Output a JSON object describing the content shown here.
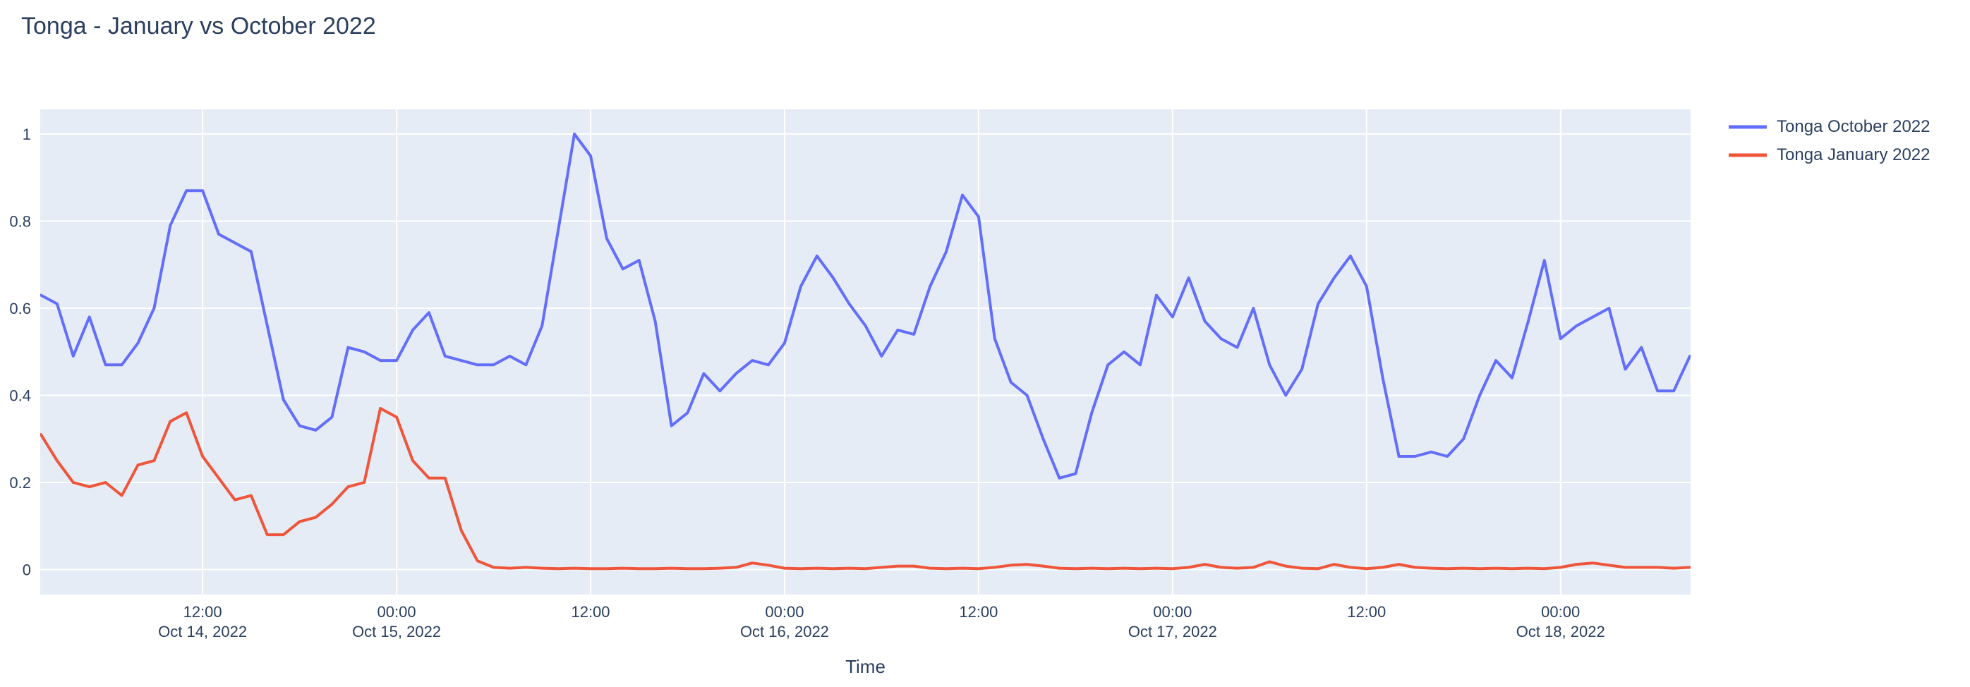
{
  "chart": {
    "title": "Tonga - January vs October 2022"
  },
  "chart_data": {
    "type": "line",
    "title": "Tonga - January vs October 2022",
    "xlabel": "Time",
    "ylabel": "",
    "x_start": "2022-10-14 02:00",
    "x_step_hours": 1,
    "x_end": "2022-10-18 08:00",
    "ylim": [
      -0.058,
      1.057
    ],
    "grid": true,
    "legend_position": "top-right",
    "plot_bg_color": "#E5ECF6",
    "grid_color": "#ffffff",
    "text_color": "#2a3f5f",
    "y_ticks": [
      "0",
      "0.2",
      "0.4",
      "0.6",
      "0.8",
      "1"
    ],
    "y_tick_values": [
      0,
      0.2,
      0.4,
      0.6,
      0.8,
      1
    ],
    "x_ticks": [
      {
        "hour_offset": 10,
        "time": "12:00",
        "date": "Oct 14, 2022"
      },
      {
        "hour_offset": 22,
        "time": "00:00",
        "date": "Oct 15, 2022"
      },
      {
        "hour_offset": 34,
        "time": "12:00",
        "date": ""
      },
      {
        "hour_offset": 46,
        "time": "00:00",
        "date": "Oct 16, 2022"
      },
      {
        "hour_offset": 58,
        "time": "12:00",
        "date": ""
      },
      {
        "hour_offset": 70,
        "time": "00:00",
        "date": "Oct 17, 2022"
      },
      {
        "hour_offset": 82,
        "time": "12:00",
        "date": ""
      },
      {
        "hour_offset": 94,
        "time": "00:00",
        "date": "Oct 18, 2022"
      }
    ],
    "series": [
      {
        "name": "Tonga October 2022",
        "color": "#636EFA",
        "values": [
          0.63,
          0.61,
          0.49,
          0.58,
          0.47,
          0.47,
          0.52,
          0.6,
          0.79,
          0.87,
          0.87,
          0.77,
          0.75,
          0.73,
          0.56,
          0.39,
          0.33,
          0.32,
          0.35,
          0.51,
          0.5,
          0.48,
          0.48,
          0.55,
          0.59,
          0.49,
          0.48,
          0.47,
          0.47,
          0.49,
          0.47,
          0.56,
          0.78,
          1.0,
          0.95,
          0.76,
          0.69,
          0.71,
          0.57,
          0.33,
          0.36,
          0.45,
          0.41,
          0.45,
          0.48,
          0.47,
          0.52,
          0.65,
          0.72,
          0.67,
          0.61,
          0.56,
          0.49,
          0.55,
          0.54,
          0.65,
          0.73,
          0.86,
          0.81,
          0.53,
          0.43,
          0.4,
          0.3,
          0.21,
          0.22,
          0.36,
          0.47,
          0.5,
          0.47,
          0.63,
          0.58,
          0.67,
          0.57,
          0.53,
          0.51,
          0.6,
          0.47,
          0.4,
          0.46,
          0.61,
          0.67,
          0.72,
          0.65,
          0.44,
          0.26,
          0.26,
          0.27,
          0.26,
          0.3,
          0.4,
          0.48,
          0.44,
          0.57,
          0.71,
          0.53,
          0.56,
          0.58,
          0.6,
          0.46,
          0.51,
          0.41,
          0.41,
          0.49
        ]
      },
      {
        "name": "Tonga January 2022",
        "color": "#EF553B",
        "values": [
          0.31,
          0.25,
          0.2,
          0.19,
          0.2,
          0.17,
          0.24,
          0.25,
          0.34,
          0.36,
          0.26,
          0.21,
          0.16,
          0.17,
          0.08,
          0.08,
          0.11,
          0.12,
          0.15,
          0.19,
          0.2,
          0.37,
          0.35,
          0.25,
          0.21,
          0.21,
          0.09,
          0.02,
          0.005,
          0.003,
          0.005,
          0.003,
          0.002,
          0.003,
          0.002,
          0.002,
          0.003,
          0.002,
          0.002,
          0.003,
          0.002,
          0.002,
          0.003,
          0.005,
          0.015,
          0.01,
          0.003,
          0.002,
          0.003,
          0.002,
          0.003,
          0.002,
          0.005,
          0.008,
          0.008,
          0.003,
          0.002,
          0.003,
          0.002,
          0.005,
          0.01,
          0.012,
          0.008,
          0.003,
          0.002,
          0.003,
          0.002,
          0.003,
          0.002,
          0.003,
          0.002,
          0.005,
          0.012,
          0.005,
          0.003,
          0.005,
          0.018,
          0.008,
          0.003,
          0.002,
          0.012,
          0.005,
          0.002,
          0.005,
          0.012,
          0.005,
          0.003,
          0.002,
          0.003,
          0.002,
          0.003,
          0.002,
          0.003,
          0.002,
          0.005,
          0.012,
          0.015,
          0.01,
          0.005,
          0.005,
          0.005,
          0.003,
          0.005
        ]
      }
    ]
  }
}
